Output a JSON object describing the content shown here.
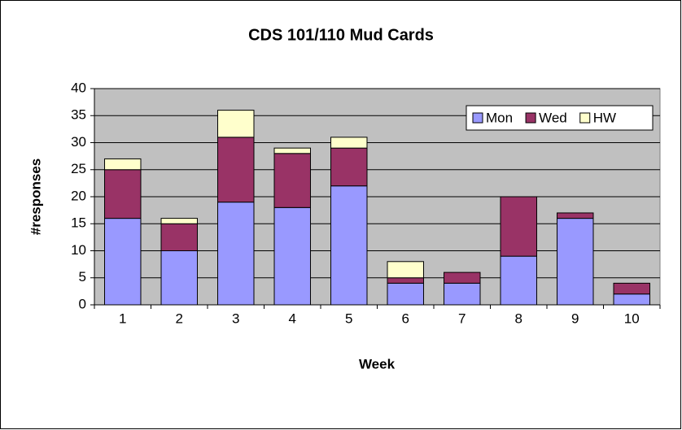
{
  "chart_data": {
    "type": "stacked_bar",
    "title": "CDS 101/110 Mud Cards",
    "x_label": "Week",
    "y_label": "#responses",
    "categories": [
      "1",
      "2",
      "3",
      "4",
      "5",
      "6",
      "7",
      "8",
      "9",
      "10"
    ],
    "series": [
      {
        "name": "Mon",
        "color": "#9999ff",
        "values": [
          16,
          10,
          19,
          18,
          22,
          4,
          4,
          9,
          16,
          2
        ]
      },
      {
        "name": "Wed",
        "color": "#993366",
        "values": [
          9,
          5,
          12,
          10,
          7,
          1,
          2,
          11,
          1,
          2
        ]
      },
      {
        "name": "HW",
        "color": "#ffffcc",
        "values": [
          2,
          1,
          5,
          1,
          2,
          3,
          0,
          0,
          0,
          0
        ]
      }
    ],
    "ylim": [
      0,
      40
    ],
    "yticks": [
      0,
      5,
      10,
      15,
      20,
      25,
      30,
      35,
      40
    ],
    "grid": true,
    "legend": "upper right",
    "plot_background": "#c0c0c0"
  }
}
